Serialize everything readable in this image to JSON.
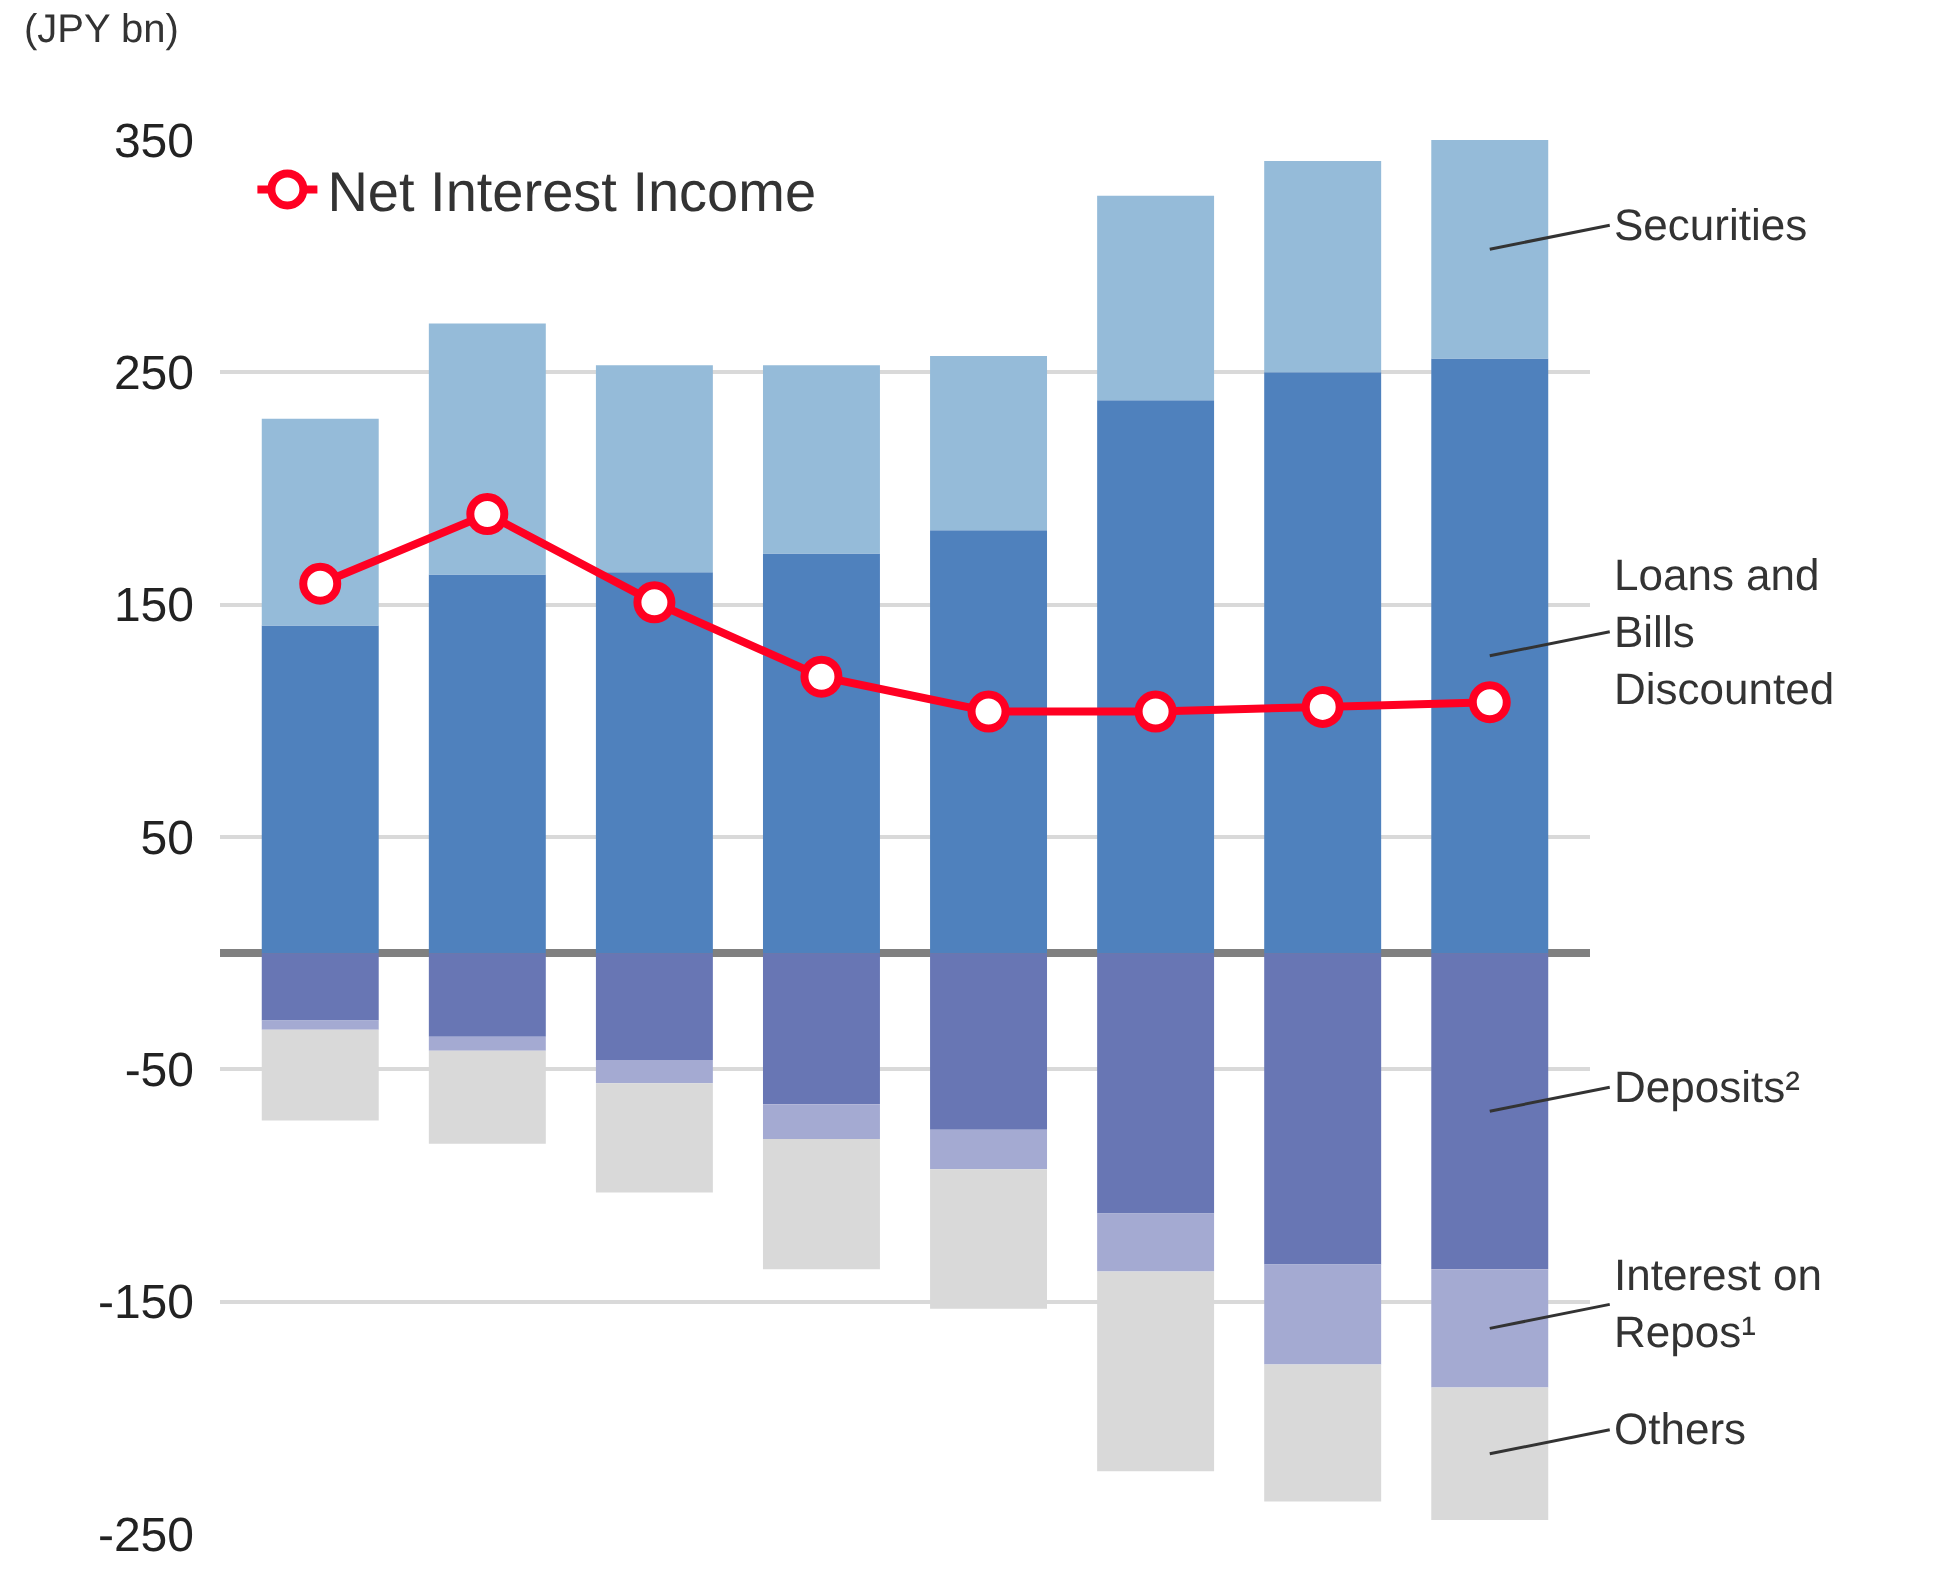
{
  "chart_data": {
    "type": "bar",
    "stacked": true,
    "ylabel": "(JPY bn)",
    "categories": [
      null,
      null,
      null,
      null,
      null,
      null,
      null,
      null
    ],
    "series": [
      {
        "name": "Loans and Bills Discounted",
        "color": "#4f81bd",
        "values": [
          141,
          163,
          164,
          172,
          182,
          238,
          250,
          256
        ]
      },
      {
        "name": "Securities",
        "color": "#95bbd9",
        "values": [
          89,
          108,
          89,
          81,
          75,
          88,
          91,
          94
        ]
      },
      {
        "name": "Deposits²",
        "color": "#6876b4",
        "values": [
          -29,
          -36,
          -46,
          -65,
          -76,
          -112,
          -134,
          -136
        ]
      },
      {
        "name": "Interest on Repos¹",
        "color": "#a4aad2",
        "values": [
          -4,
          -6,
          -10,
          -15,
          -17,
          -25,
          -43,
          -51
        ]
      },
      {
        "name": "Others",
        "color": "#d9d9d9",
        "values": [
          -39,
          -40,
          -47,
          -56,
          -60,
          -86,
          -59,
          -57
        ]
      },
      {
        "name": "Net Interest Income",
        "type": "line",
        "color": "#ff0022",
        "marker": "circle",
        "line_style": "solid",
        "values": [
          159,
          189,
          151,
          119,
          104,
          104,
          106,
          108
        ]
      }
    ],
    "ylim": [
      -250,
      350
    ],
    "yticks": [
      350,
      250,
      150,
      50,
      -50,
      -150,
      -250
    ],
    "grid": "y",
    "legend": "top left",
    "tick_labels": "y"
  }
}
